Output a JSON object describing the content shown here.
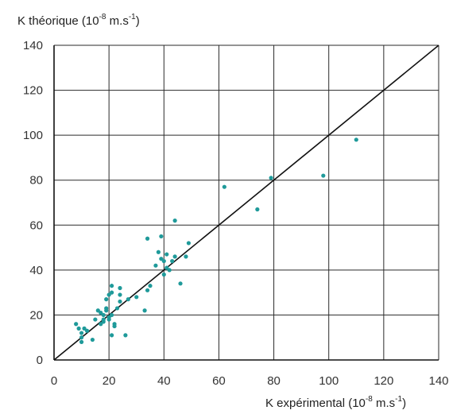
{
  "chart_data": {
    "type": "scatter",
    "title": "",
    "ylabel_parts": [
      "K théorique (10",
      "-8",
      " m.s",
      "-1",
      ")"
    ],
    "xlabel_parts": [
      "K expérimental (10",
      "-8",
      " m.s",
      "-1",
      ")"
    ],
    "xlim": [
      0,
      140
    ],
    "ylim": [
      0,
      140
    ],
    "x_ticks": [
      0,
      20,
      40,
      60,
      80,
      100,
      120,
      140
    ],
    "y_ticks": [
      0,
      20,
      40,
      60,
      80,
      100,
      120,
      140
    ],
    "grid": true,
    "reference_line": {
      "x": [
        0,
        140
      ],
      "y": [
        0,
        140
      ],
      "color": "#111111"
    },
    "point_color": "#1f9a9a",
    "series": [
      {
        "x": [
          8,
          9,
          10,
          10,
          10,
          11,
          12,
          14,
          15,
          16,
          17,
          17,
          18,
          18,
          18,
          19,
          19,
          19,
          20,
          20,
          20,
          21,
          21,
          21,
          21,
          22,
          22,
          23,
          24,
          24,
          24,
          26,
          27,
          30,
          33,
          34,
          34,
          35,
          37,
          38,
          39,
          39,
          40,
          40,
          41,
          41,
          42,
          43,
          44,
          44,
          46,
          48,
          49,
          62,
          74,
          79,
          98,
          110
        ],
        "y": [
          16,
          14,
          10,
          8,
          12,
          14,
          13,
          9,
          18,
          22,
          16,
          21,
          17,
          18,
          20,
          22,
          27,
          23,
          18,
          19,
          29,
          30,
          33,
          20,
          11,
          15,
          16,
          23,
          32,
          26,
          29,
          11,
          27,
          28,
          22,
          54,
          31,
          33,
          42,
          48,
          45,
          55,
          44,
          38,
          47,
          41,
          40,
          44,
          46,
          62,
          34,
          46,
          52,
          77,
          67,
          81,
          82,
          98
        ]
      }
    ]
  }
}
